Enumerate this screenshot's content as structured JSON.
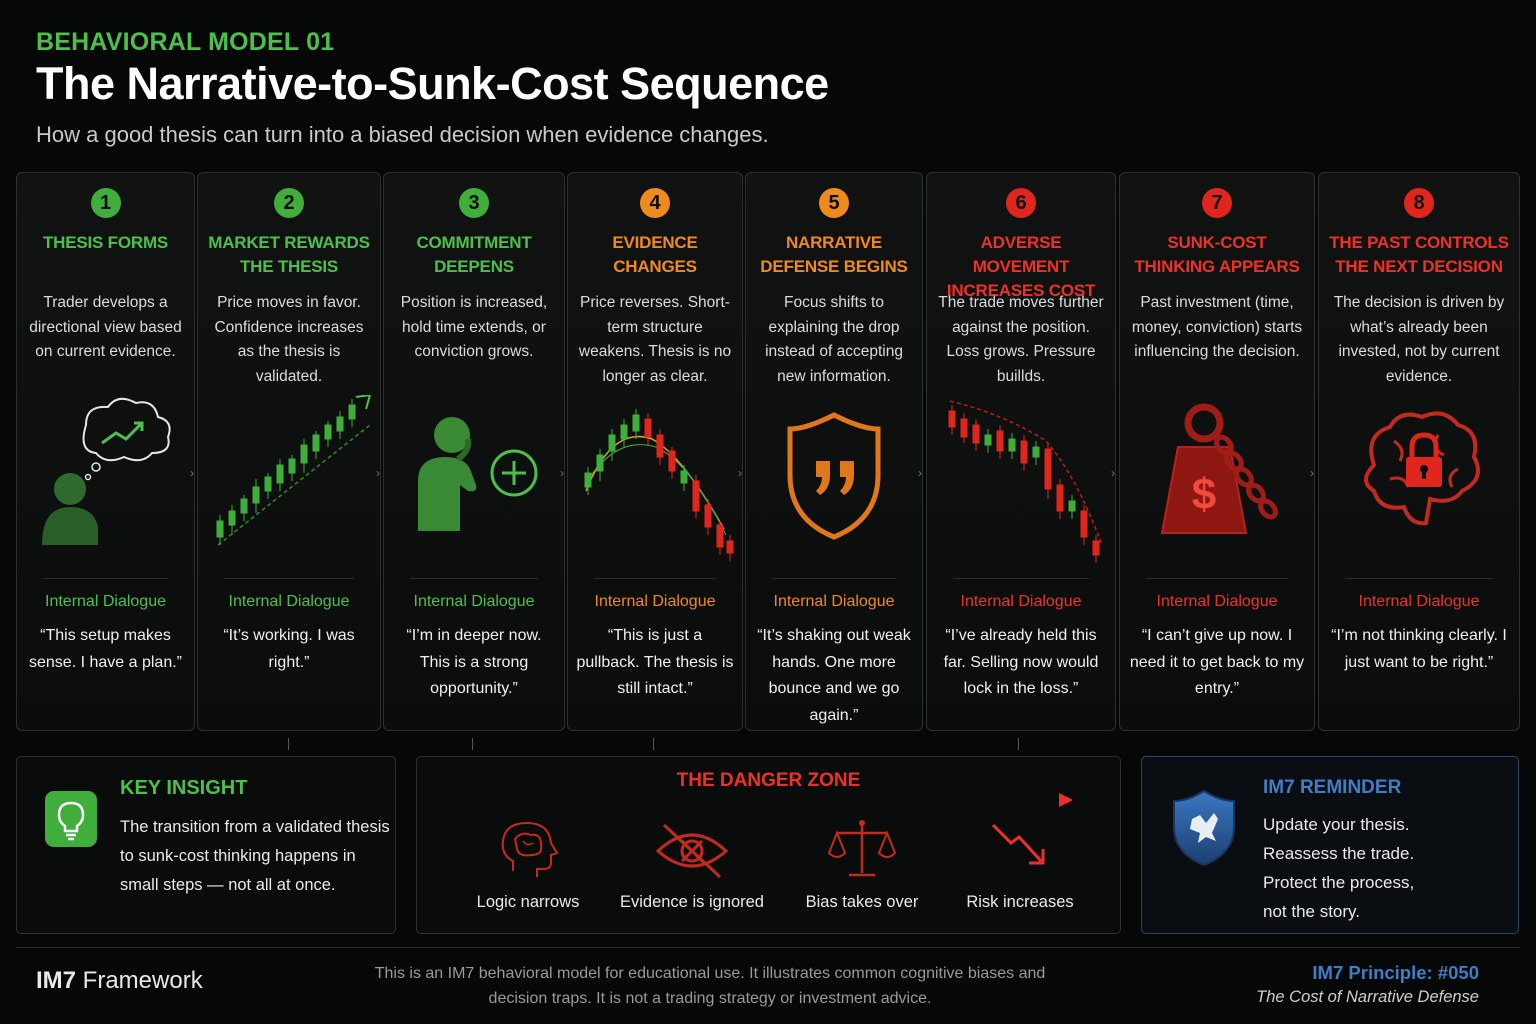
{
  "header": {
    "eyebrow": "BEHAVIORAL MODEL 01",
    "title": "The Narrative-to-Sunk-Cost Sequence",
    "subtitle": "How a good thesis can turn into a biased decision when evidence changes."
  },
  "stages": [
    {
      "num": "1",
      "tone": "green",
      "heading": "THESIS FORMS",
      "desc": "Trader develops a directional view based on current evidence.",
      "visual": "thinking-person-icon",
      "dialogue_label": "Internal Dialogue",
      "quote": "“This setup makes sense. I have a plan.”"
    },
    {
      "num": "2",
      "tone": "green",
      "heading": "MARKET REWARDS THE THESIS",
      "desc": "Price moves in favor. Confidence increases as the thesis is validated.",
      "visual": "uptrend-candles-icon",
      "dialogue_label": "Internal Dialogue",
      "quote": "“It’s working. I was right.”"
    },
    {
      "num": "3",
      "tone": "green",
      "heading": "COMMITMENT DEEPENS",
      "desc": "Position is increased, hold time extends, or conviction grows.",
      "visual": "person-plus-icon",
      "dialogue_label": "Internal Dialogue",
      "quote": "“I’m in deeper now. This is a strong opportunity.”"
    },
    {
      "num": "4",
      "tone": "orange",
      "heading": "EVIDENCE CHANGES",
      "desc": "Price reverses. Short-term structure weakens. Thesis is no longer as clear.",
      "visual": "reversal-candles-icon",
      "dialogue_label": "Internal Dialogue",
      "quote": "“This is just a pullback. The thesis is still intact.”"
    },
    {
      "num": "5",
      "tone": "orange",
      "heading": "NARRATIVE DEFENSE BEGINS",
      "desc": "Focus shifts to explaining the drop instead of accepting new information.",
      "visual": "quote-shield-icon",
      "dialogue_label": "Internal Dialogue",
      "quote": "“It’s shaking out weak hands. One more bounce and we go again.”"
    },
    {
      "num": "6",
      "tone": "red",
      "heading": "ADVERSE MOVEMENT INCREASES COST",
      "desc": "The trade moves further against the position. Loss grows. Pressure buillds.",
      "visual": "downtrend-candles-icon",
      "dialogue_label": "Internal Dialogue",
      "quote": "“I’ve already held this far. Selling now would lock in the loss.”"
    },
    {
      "num": "7",
      "tone": "red",
      "heading": "SUNK-COST THINKING APPEARS",
      "desc": "Past investment (time, money, conviction) starts influencing the decision.",
      "visual": "chained-weight-icon",
      "dialogue_label": "Internal Dialogue",
      "quote": "“I can’t give up now. I need it to get back to my entry.”"
    },
    {
      "num": "8",
      "tone": "red",
      "heading": "THE PAST CONTROLS THE NEXT DECISION",
      "desc": "The decision is driven by what’s already been invested, not by current evidence.",
      "visual": "locked-brain-icon",
      "dialogue_label": "Internal Dialogue",
      "quote": "“I’m not thinking clearly. I just want to be right.”"
    }
  ],
  "key_insight": {
    "title": "KEY INSIGHT",
    "text": "The transition from a validated thesis to sunk-cost thinking happens in small steps — not all at once.",
    "icon": "lightbulb-icon"
  },
  "danger_zone": {
    "title": "THE DANGER ZONE",
    "items": [
      {
        "label": "Logic narrows",
        "icon": "brain-head-icon"
      },
      {
        "label": "Evidence is ignored",
        "icon": "crossed-eye-icon"
      },
      {
        "label": "Bias takes over",
        "icon": "scales-icon"
      },
      {
        "label": "Risk increases",
        "icon": "down-arrow-icon"
      }
    ]
  },
  "reminder": {
    "title": "IM7 REMINDER",
    "lines": [
      "Update your thesis.",
      "Reassess the trade.",
      "Protect the process,",
      "not the story."
    ],
    "icon": "shield-icon"
  },
  "footer": {
    "brand_bold": "IM7",
    "brand_rest": " Framework",
    "disclaimer": "This is an IM7 behavioral model for educational use. It illustrates common cognitive biases and decision traps. It is not a trading strategy or investment advice.",
    "principle": "IM7 Principle: #050",
    "principle_sub": "The Cost of Narrative Defense"
  },
  "colors": {
    "green": "#4cc04a",
    "orange": "#f08a1c",
    "red": "#ee3126",
    "blue": "#3d7ec7"
  }
}
